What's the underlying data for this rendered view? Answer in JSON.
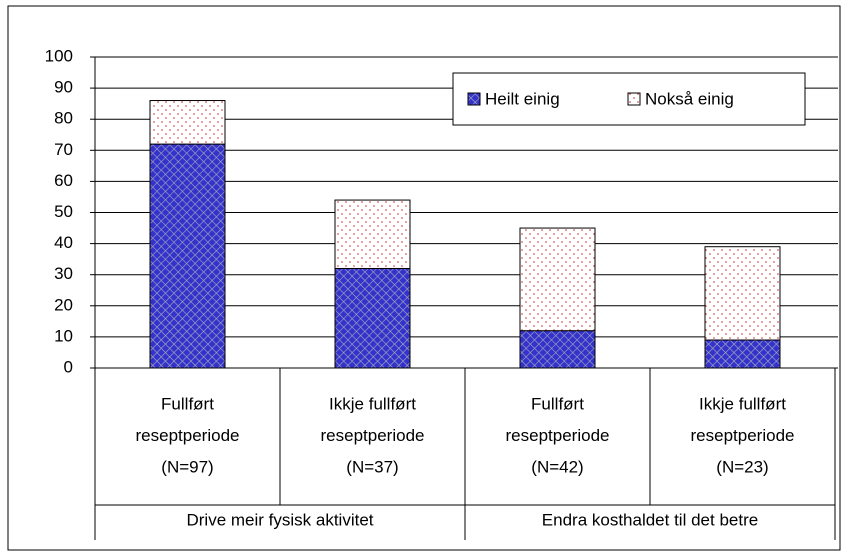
{
  "chart_data": {
    "type": "stacked_bar",
    "categories": [
      [
        "Fullført",
        "reseptperiode",
        "(N=97)"
      ],
      [
        "Ikkje fullført",
        "reseptperiode",
        "(N=37)"
      ],
      [
        "Fullført",
        "reseptperiode",
        "(N=42)"
      ],
      [
        "Ikkje fullført",
        "reseptperiode",
        "(N=23)"
      ]
    ],
    "groups": [
      "Drive meir fysisk aktivitet",
      "Endra kosthaldet til det betre"
    ],
    "series": [
      {
        "name": "Heilt einig",
        "color": "#3333cc",
        "values": [
          72,
          32,
          12,
          9
        ]
      },
      {
        "name": "Nokså einig",
        "color": "#cc3333",
        "values": [
          14,
          22,
          33,
          30
        ]
      }
    ],
    "ylim": [
      0,
      100
    ],
    "yticks": [
      0,
      10,
      20,
      30,
      40,
      50,
      60,
      70,
      80,
      90,
      100
    ],
    "grid": true
  }
}
